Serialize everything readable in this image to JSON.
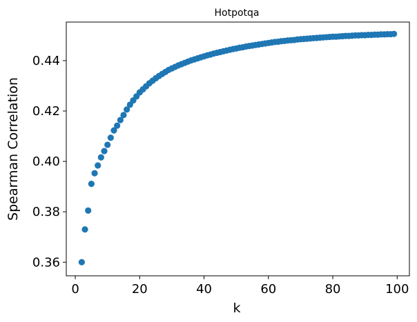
{
  "chart_data": {
    "type": "scatter",
    "title": "Hotpotqa",
    "xlabel": "k",
    "ylabel": "Spearman Correlation",
    "xlim": [
      -2.8,
      103.8
    ],
    "ylim": [
      0.3546,
      0.4553
    ],
    "xticks": [
      0,
      20,
      40,
      60,
      80,
      100
    ],
    "xtick_labels": [
      "0",
      "20",
      "40",
      "60",
      "80",
      "100"
    ],
    "yticks": [
      0.36,
      0.38,
      0.4,
      0.42,
      0.44
    ],
    "ytick_labels": [
      "0.36",
      "0.38",
      "0.40",
      "0.42",
      "0.44"
    ],
    "grid": false,
    "marker_color": "#1f77b4",
    "series": [
      {
        "x": [
          2,
          3,
          4,
          5,
          6,
          7,
          8,
          9,
          10,
          11,
          12,
          13,
          14,
          15,
          16,
          17,
          18,
          19,
          20,
          21,
          22,
          23,
          24,
          25,
          26,
          27,
          28,
          29,
          30,
          31,
          32,
          33,
          34,
          35,
          36,
          37,
          38,
          39,
          40,
          41,
          42,
          43,
          44,
          45,
          46,
          47,
          48,
          49,
          50,
          51,
          52,
          53,
          54,
          55,
          56,
          57,
          58,
          59,
          60,
          61,
          62,
          63,
          64,
          65,
          66,
          67,
          68,
          69,
          70,
          71,
          72,
          73,
          74,
          75,
          76,
          77,
          78,
          79,
          80,
          81,
          82,
          83,
          84,
          85,
          86,
          87,
          88,
          89,
          90,
          91,
          92,
          93,
          94,
          95,
          96,
          97,
          98,
          99
        ],
        "y": [
          0.36,
          0.373,
          0.3805,
          0.3911,
          0.3953,
          0.3984,
          0.4016,
          0.4041,
          0.4066,
          0.4094,
          0.4123,
          0.4142,
          0.4164,
          0.4184,
          0.4206,
          0.4225,
          0.4242,
          0.4258,
          0.4274,
          0.4286,
          0.4298,
          0.431,
          0.432,
          0.433,
          0.4339,
          0.4347,
          0.4355,
          0.4363,
          0.4369,
          0.4375,
          0.4381,
          0.4386,
          0.4391,
          0.4396,
          0.4401,
          0.4405,
          0.4409,
          0.4413,
          0.4417,
          0.4421,
          0.4424,
          0.4428,
          0.4431,
          0.4434,
          0.4437,
          0.444,
          0.4443,
          0.4446,
          0.4448,
          0.4451,
          0.4453,
          0.4456,
          0.4458,
          0.446,
          0.4462,
          0.4464,
          0.4466,
          0.4468,
          0.447,
          0.4472,
          0.4474,
          0.4475,
          0.4477,
          0.4478,
          0.448,
          0.4481,
          0.4482,
          0.4484,
          0.4485,
          0.4486,
          0.4487,
          0.4488,
          0.4489,
          0.449,
          0.4491,
          0.4492,
          0.4493,
          0.4494,
          0.4495,
          0.4495,
          0.4496,
          0.4497,
          0.4498,
          0.4498,
          0.4499,
          0.45,
          0.45,
          0.4501,
          0.4501,
          0.4502,
          0.4502,
          0.4503,
          0.4503,
          0.4504,
          0.4504,
          0.4505,
          0.4505,
          0.4506
        ]
      }
    ]
  }
}
